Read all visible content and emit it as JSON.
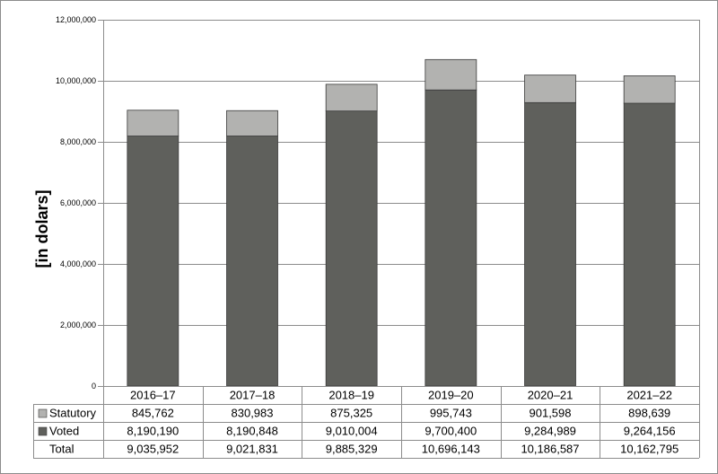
{
  "chart_data": {
    "type": "bar",
    "stacked": true,
    "title": "",
    "xlabel": "",
    "ylabel": "[in dolars]",
    "ylim": [
      0,
      12000000
    ],
    "yticks": [
      0,
      2000000,
      4000000,
      6000000,
      8000000,
      10000000,
      12000000
    ],
    "ytick_labels": [
      "0",
      "2,000,000",
      "4,000,000",
      "6,000,000",
      "8,000,000",
      "10,000,000",
      "12,000,000"
    ],
    "grid": true,
    "categories": [
      "2016–17",
      "2017–18",
      "2018–19",
      "2019–20",
      "2020–21",
      "2021–22"
    ],
    "series": [
      {
        "name": "Voted",
        "color": "#5f605c",
        "values": [
          8190190,
          8190848,
          9010004,
          9700400,
          9284989,
          9264156
        ]
      },
      {
        "name": "Statutory",
        "color": "#b2b2b0",
        "values": [
          845762,
          830983,
          875325,
          995743,
          901598,
          898639
        ]
      }
    ],
    "data_table": {
      "rows": [
        {
          "key": "statutory",
          "label": "Statutory",
          "swatch": "#b2b2b0",
          "values": [
            "845,762",
            "830,983",
            "875,325",
            "995,743",
            "901,598",
            "898,639"
          ]
        },
        {
          "key": "voted",
          "label": "Voted",
          "swatch": "#5f605c",
          "values": [
            "8,190,190",
            "8,190,848",
            "9,010,004",
            "9,700,400",
            "9,284,989",
            "9,264,156"
          ]
        },
        {
          "key": "total",
          "label": "Total",
          "swatch": "",
          "values": [
            "9,035,952",
            "9,021,831",
            "9,885,329",
            "10,696,143",
            "10,186,587",
            "10,162,795"
          ]
        }
      ]
    }
  }
}
